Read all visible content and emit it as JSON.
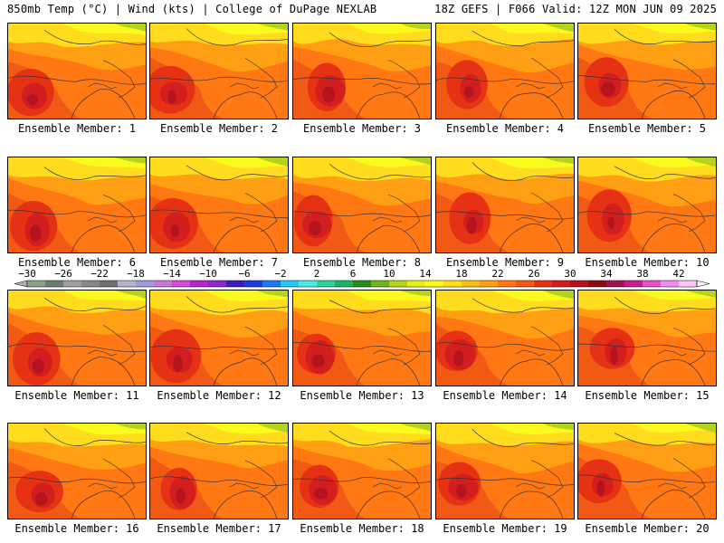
{
  "header": {
    "left": "850mb Temp (°C) | Wind (kts) | College of DuPage NEXLAB",
    "right": "18Z GEFS | F066 Valid: 12Z MON JUN 09 2025"
  },
  "panels": [
    {
      "label": "Ensemble Member: 1"
    },
    {
      "label": "Ensemble Member: 2"
    },
    {
      "label": "Ensemble Member: 3"
    },
    {
      "label": "Ensemble Member: 4"
    },
    {
      "label": "Ensemble Member: 5"
    },
    {
      "label": "Ensemble Member: 6"
    },
    {
      "label": "Ensemble Member: 7"
    },
    {
      "label": "Ensemble Member: 8"
    },
    {
      "label": "Ensemble Member: 9"
    },
    {
      "label": "Ensemble Member: 10"
    },
    {
      "label": "Ensemble Member: 11"
    },
    {
      "label": "Ensemble Member: 12"
    },
    {
      "label": "Ensemble Member: 13"
    },
    {
      "label": "Ensemble Member: 14"
    },
    {
      "label": "Ensemble Member: 15"
    },
    {
      "label": "Ensemble Member: 16"
    },
    {
      "label": "Ensemble Member: 17"
    },
    {
      "label": "Ensemble Member: 18"
    },
    {
      "label": "Ensemble Member: 19"
    },
    {
      "label": "Ensemble Member: 20"
    }
  ],
  "colorbar": {
    "labels": [
      "−30",
      "−26",
      "−22",
      "−18",
      "−14",
      "−10",
      "−6",
      "−2",
      "2",
      "6",
      "10",
      "14",
      "18",
      "22",
      "26",
      "30",
      "34",
      "38",
      "42"
    ],
    "colors": [
      "#8aa08a",
      "#6e7e6e",
      "#a0a0a0",
      "#888888",
      "#707070",
      "#b4b4c8",
      "#9aa0d2",
      "#c878d2",
      "#d24bd2",
      "#b428c8",
      "#8c28c8",
      "#3c1eb4",
      "#1e3cdc",
      "#1e78f0",
      "#28c8f0",
      "#50e6e6",
      "#32d2a0",
      "#1eb464",
      "#288c1e",
      "#6eb41e",
      "#b4d21e",
      "#e6f01e",
      "#fafa1e",
      "#ffdc1e",
      "#ffbe14",
      "#ffa014",
      "#ff7814",
      "#f05a14",
      "#e63214",
      "#d21e1e",
      "#b4141e",
      "#8c0a14",
      "#a01450",
      "#c81e8c",
      "#e650c8",
      "#f08cf0",
      "#f5c8f5"
    ],
    "arrow_left": "#aab4aa",
    "arrow_right": "#faf0fa"
  }
}
